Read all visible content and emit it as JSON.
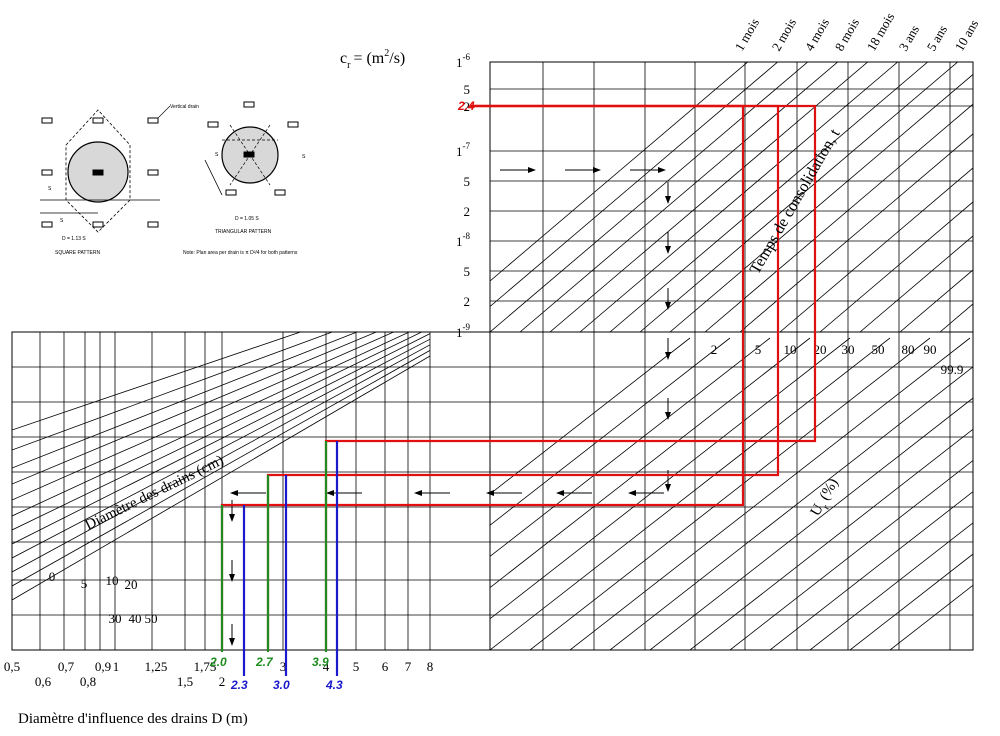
{
  "cr_label": "c",
  "cr_sub": "r",
  "cr_units": "= (m",
  "cr_units_sup": "2",
  "cr_units_end": "/s)",
  "cr_axis": [
    {
      "m": "1",
      "e": "-6"
    },
    {
      "m": "5",
      "e": ""
    },
    {
      "m": "2",
      "e": ""
    },
    {
      "m": "1",
      "e": "-7"
    },
    {
      "m": "5",
      "e": ""
    },
    {
      "m": "2",
      "e": ""
    },
    {
      "m": "1",
      "e": "-8"
    },
    {
      "m": "5",
      "e": ""
    },
    {
      "m": "2",
      "e": ""
    },
    {
      "m": "1",
      "e": "-9"
    }
  ],
  "time_axis": [
    "1 mois",
    "2 mois",
    "4 mois",
    "8 mois",
    "18 mois",
    "3 ans",
    "5 ans",
    "10 ans"
  ],
  "time_title": "Temps de consolidation, t",
  "ur_ticks": [
    "2",
    "5",
    "10",
    "20",
    "30",
    "50",
    "80",
    "90"
  ],
  "ur_extra": "99.9",
  "ur_title": "U",
  "ur_title_sub": "r",
  "ur_title_end": "(%)",
  "drain_diam_title": "Diamètre des drains (cm)",
  "drain_diam_ticks": [
    "0",
    "5",
    "10",
    "20",
    "30",
    "40",
    "50"
  ],
  "D_axis": [
    "0,5",
    "0,6",
    "0,7",
    "0,8",
    "0,9",
    "1",
    "1,25",
    "1,5",
    "1,75",
    "2",
    "3",
    "4",
    "5",
    "6",
    "7",
    "8"
  ],
  "D_title": "Diamètre d'influence des drains D (m)",
  "markers": {
    "cr_value": "2.4",
    "green": [
      "2.0",
      "2.7",
      "3.9"
    ],
    "blue": [
      "2.3",
      "3.0",
      "4.3"
    ]
  },
  "inset": {
    "vertical_drain": "Vertical drain",
    "square_formula": "D = 1.13 S",
    "square_caption": "SQUARE PATTERN",
    "tri_formula": "D = 1.05 S",
    "tri_caption": "TRIANGULAR PATTERN",
    "note": "Note: Plan area per drain is π D²/4 for both patterns",
    "s": "S"
  },
  "colors": {
    "red": "#e01010",
    "green": "#1e8c1e",
    "blue": "#1a1acc",
    "grid": "#000000"
  }
}
